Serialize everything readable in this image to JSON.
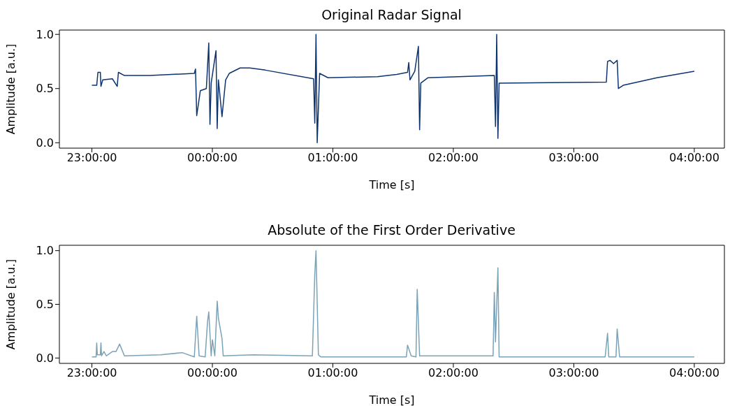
{
  "chart_data": [
    {
      "type": "line",
      "title": "Original Radar Signal",
      "xlabel": "Time [s]",
      "ylabel": "Amplitude [a.u.]",
      "xlim": [
        "2000-01-01T22:43:48",
        "2000-01-02T04:15:00"
      ],
      "ylim": [
        -0.05,
        1.04
      ],
      "xticks": [
        {
          "value": "2000-01-01T23:00",
          "label": "23:00:00"
        },
        {
          "value": "2000-01-02T00:00",
          "label": "00:00:00"
        },
        {
          "value": "2000-01-02T01:00",
          "label": "01:00:00"
        },
        {
          "value": "2000-01-02T02:00",
          "label": "02:00:00"
        },
        {
          "value": "2000-01-02T03:00",
          "label": "03:00:00"
        },
        {
          "value": "2000-01-02T04:00",
          "label": "04:00:00"
        }
      ],
      "yticks": [
        {
          "value": 0,
          "label": "0.0"
        },
        {
          "value": 0.5,
          "label": "0.5"
        },
        {
          "value": 1,
          "label": "1.0"
        }
      ],
      "series": [
        {
          "color": "#0d3470",
          "x": [
            "2000-01-01T23:00:00",
            "2000-01-01T23:02:24",
            "2000-01-01T23:03:00",
            "2000-01-01T23:04:12",
            "2000-01-01T23:04:30",
            "2000-01-01T23:05:24",
            "2000-01-01T23:10:12",
            "2000-01-01T23:12:36",
            "2000-01-01T23:13:12",
            "2000-01-01T23:16:12",
            "2000-01-01T23:28:48",
            "2000-01-01T23:51:00",
            "2000-01-01T23:51:36",
            "2000-01-01T23:52:12",
            "2000-01-01T23:54:00",
            "2000-01-01T23:57:00",
            "2000-01-01T23:58:12",
            "2000-01-01T23:58:48",
            "2000-01-01T23:59:24",
            "2000-01-02T00:01:48",
            "2000-01-02T00:02:24",
            "2000-01-02T00:03:00",
            "2000-01-02T00:04:48",
            "2000-01-02T00:06:36",
            "2000-01-02T00:08:24",
            "2000-01-02T00:13:48",
            "2000-01-02T00:18:36",
            "2000-01-02T00:26:24",
            "2000-01-02T00:50:24",
            "2000-01-02T00:51:00",
            "2000-01-02T00:51:36",
            "2000-01-02T00:52:12",
            "2000-01-02T00:53:24",
            "2000-01-02T00:57:36",
            "2000-01-02T01:22:12",
            "2000-01-02T01:31:48",
            "2000-01-02T01:37:12",
            "2000-01-02T01:37:48",
            "2000-01-02T01:38:24",
            "2000-01-02T01:40:48",
            "2000-01-02T01:42:36",
            "2000-01-02T01:43:12",
            "2000-01-02T01:43:48",
            "2000-01-02T01:47:24",
            "2000-01-02T02:20:24",
            "2000-01-02T02:21:00",
            "2000-01-02T02:21:36",
            "2000-01-02T02:22:12",
            "2000-01-02T02:22:48",
            "2000-01-02T03:16:12",
            "2000-01-02T03:16:48",
            "2000-01-02T03:18:00",
            "2000-01-02T03:19:48",
            "2000-01-02T03:21:36",
            "2000-01-02T03:22:12",
            "2000-01-02T03:24:36",
            "2000-01-02T03:41:24",
            "2000-01-02T04:00:00"
          ],
          "values": [
            0.53,
            0.53,
            0.65,
            0.65,
            0.52,
            0.58,
            0.59,
            0.52,
            0.65,
            0.62,
            0.62,
            0.64,
            0.68,
            0.25,
            0.48,
            0.5,
            0.92,
            0.17,
            0.55,
            0.85,
            0.13,
            0.58,
            0.24,
            0.58,
            0.64,
            0.69,
            0.69,
            0.67,
            0.59,
            0.18,
            1.0,
            0.0,
            0.64,
            0.6,
            0.61,
            0.63,
            0.65,
            0.74,
            0.58,
            0.66,
            0.89,
            0.12,
            0.55,
            0.6,
            0.62,
            0.15,
            1.0,
            0.04,
            0.55,
            0.56,
            0.75,
            0.76,
            0.73,
            0.76,
            0.5,
            0.53,
            0.6,
            0.66
          ]
        }
      ]
    },
    {
      "type": "line",
      "title": "Absolute of the First Order Derivative",
      "xlabel": "Time [s]",
      "ylabel": "Amplitude [a.u.]",
      "xlim": [
        "2000-01-01T22:43:48",
        "2000-01-02T04:15:00"
      ],
      "ylim": [
        -0.05,
        1.05
      ],
      "xticks": [
        {
          "value": "2000-01-01T23:00",
          "label": "23:00:00"
        },
        {
          "value": "2000-01-02T00:00",
          "label": "00:00:00"
        },
        {
          "value": "2000-01-02T01:00",
          "label": "01:00:00"
        },
        {
          "value": "2000-01-02T02:00",
          "label": "02:00:00"
        },
        {
          "value": "2000-01-02T03:00",
          "label": "03:00:00"
        },
        {
          "value": "2000-01-02T04:00",
          "label": "04:00:00"
        }
      ],
      "yticks": [
        {
          "value": 0,
          "label": "0.0"
        },
        {
          "value": 0.5,
          "label": "0.5"
        },
        {
          "value": 1,
          "label": "1.0"
        }
      ],
      "series": [
        {
          "color": "#7ba3b8",
          "x": [
            "2000-01-01T23:00:00",
            "2000-01-01T23:02:06",
            "2000-01-01T23:02:24",
            "2000-01-01T23:02:42",
            "2000-01-01T23:04:12",
            "2000-01-01T23:04:30",
            "2000-01-01T23:04:48",
            "2000-01-01T23:06:00",
            "2000-01-01T23:07:12",
            "2000-01-01T23:10:12",
            "2000-01-01T23:12:00",
            "2000-01-01T23:13:48",
            "2000-01-01T23:16:12",
            "2000-01-01T23:34:12",
            "2000-01-01T23:45:00",
            "2000-01-01T23:51:00",
            "2000-01-01T23:52:12",
            "2000-01-01T23:53:24",
            "2000-01-01T23:56:24",
            "2000-01-01T23:57:36",
            "2000-01-01T23:58:12",
            "2000-01-01T23:59:24",
            "2000-01-02T00:00:00",
            "2000-01-02T00:01:12",
            "2000-01-02T00:02:24",
            "2000-01-02T00:03:00",
            "2000-01-02T00:04:48",
            "2000-01-02T00:05:24",
            "2000-01-02T00:20:24",
            "2000-01-02T00:49:48",
            "2000-01-02T00:51:00",
            "2000-01-02T00:51:36",
            "2000-01-02T00:52:48",
            "2000-01-02T00:54:00",
            "2000-01-02T01:36:36",
            "2000-01-02T01:37:12",
            "2000-01-02T01:39:00",
            "2000-01-02T01:41:24",
            "2000-01-02T01:42:00",
            "2000-01-02T01:43:12",
            "2000-01-02T02:19:48",
            "2000-01-02T02:20:24",
            "2000-01-02T02:21:00",
            "2000-01-02T02:22:12",
            "2000-01-02T02:22:48",
            "2000-01-02T03:15:36",
            "2000-01-02T03:16:48",
            "2000-01-02T03:17:24",
            "2000-01-02T03:21:00",
            "2000-01-02T03:21:36",
            "2000-01-02T03:22:48",
            "2000-01-02T04:00:00"
          ],
          "values": [
            0.01,
            0.01,
            0.14,
            0.03,
            0.03,
            0.14,
            0.02,
            0.06,
            0.02,
            0.06,
            0.06,
            0.13,
            0.02,
            0.03,
            0.05,
            0.01,
            0.39,
            0.02,
            0.01,
            0.34,
            0.43,
            0.02,
            0.17,
            0.02,
            0.53,
            0.37,
            0.18,
            0.02,
            0.03,
            0.02,
            0.78,
            1.0,
            0.03,
            0.01,
            0.01,
            0.12,
            0.02,
            0.01,
            0.64,
            0.02,
            0.02,
            0.61,
            0.15,
            0.84,
            0.01,
            0.01,
            0.23,
            0.01,
            0.01,
            0.27,
            0.01,
            0.01
          ]
        }
      ]
    }
  ]
}
